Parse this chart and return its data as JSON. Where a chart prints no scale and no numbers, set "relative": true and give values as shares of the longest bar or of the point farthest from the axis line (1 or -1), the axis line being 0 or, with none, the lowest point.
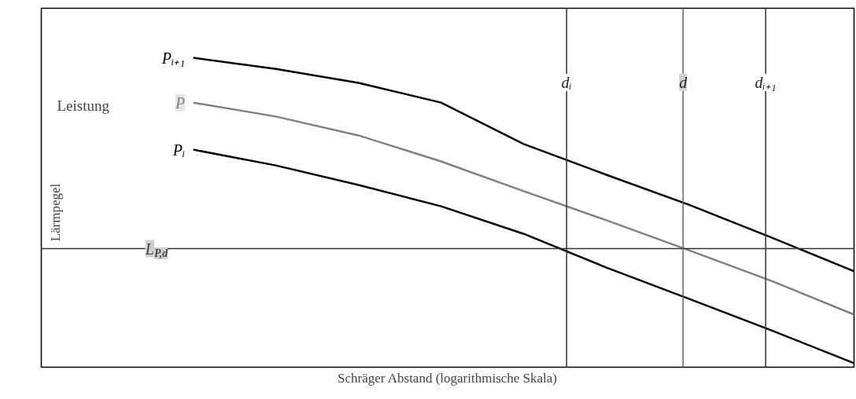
{
  "chart_data": {
    "type": "line",
    "relative": true,
    "xlabel": "Schräger Abstand (logarithmische Skala)",
    "categories": [
      null,
      null,
      null,
      null,
      null,
      null,
      null,
      null,
      null
    ],
    "series": [
      {
        "name": "Pᵢ₊₁",
        "color": "#000000",
        "values": [
          1,
          0.964,
          0.919,
          0.855,
          0.721,
          0.622,
          0.525,
          0.419,
          0.31
        ]
      },
      {
        "name": "P",
        "color": "#808080",
        "values": [
          0.855,
          0.81,
          0.749,
          0.665,
          0.569,
          0.475,
          0.378,
          0.279,
          0.17
        ]
      },
      {
        "name": "Pᵢ",
        "color": "#000000",
        "values": [
          0.703,
          0.652,
          0.589,
          0.52,
          0.431,
          0.322,
          0.221,
          0.119,
          0.013
        ]
      }
    ],
    "ref_lines": [
      {
        "axis": "y",
        "value": 0.383,
        "label": "L$_{P,d}$",
        "color": "#333333"
      }
    ],
    "annotations": [
      "Leistung",
      "dᵢ",
      "d",
      "dᵢ₊₁",
      "Lärmpegel"
    ],
    "legend": false,
    "marker": "none",
    "line_style": "solid"
  }
}
